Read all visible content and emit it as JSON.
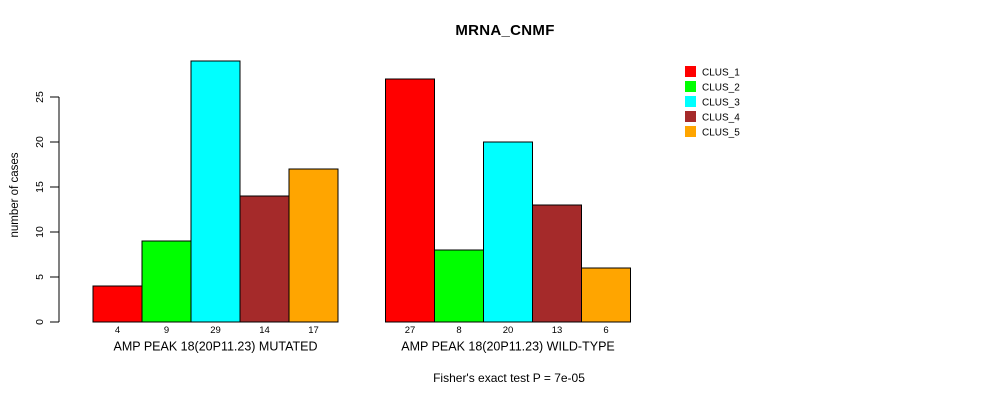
{
  "chart_data": {
    "type": "bar",
    "title": "MRNA_CNMF",
    "ylabel": "number of cases",
    "xlabel": "",
    "ylim": [
      0,
      29
    ],
    "yticks": [
      0,
      5,
      10,
      15,
      20,
      25
    ],
    "grid": false,
    "legend_position": "right",
    "bar_value_labels": true,
    "categories": [
      "AMP PEAK 18(20P11.23) MUTATED",
      "AMP PEAK 18(20P11.23) WILD-TYPE"
    ],
    "series": [
      {
        "name": "CLUS_1",
        "color": "#FF0000",
        "values": [
          4,
          27
        ]
      },
      {
        "name": "CLUS_2",
        "color": "#00FF00",
        "values": [
          9,
          8
        ]
      },
      {
        "name": "CLUS_3",
        "color": "#00FFFF",
        "values": [
          29,
          20
        ]
      },
      {
        "name": "CLUS_4",
        "color": "#A52A2A",
        "values": [
          14,
          13
        ]
      },
      {
        "name": "CLUS_5",
        "color": "#FFA500",
        "values": [
          17,
          6
        ]
      }
    ],
    "annotation": "Fisher's exact test P = 7e-05",
    "colors": {
      "bar_border": "#000000",
      "axis": "#000000",
      "background": "#ffffff"
    }
  }
}
